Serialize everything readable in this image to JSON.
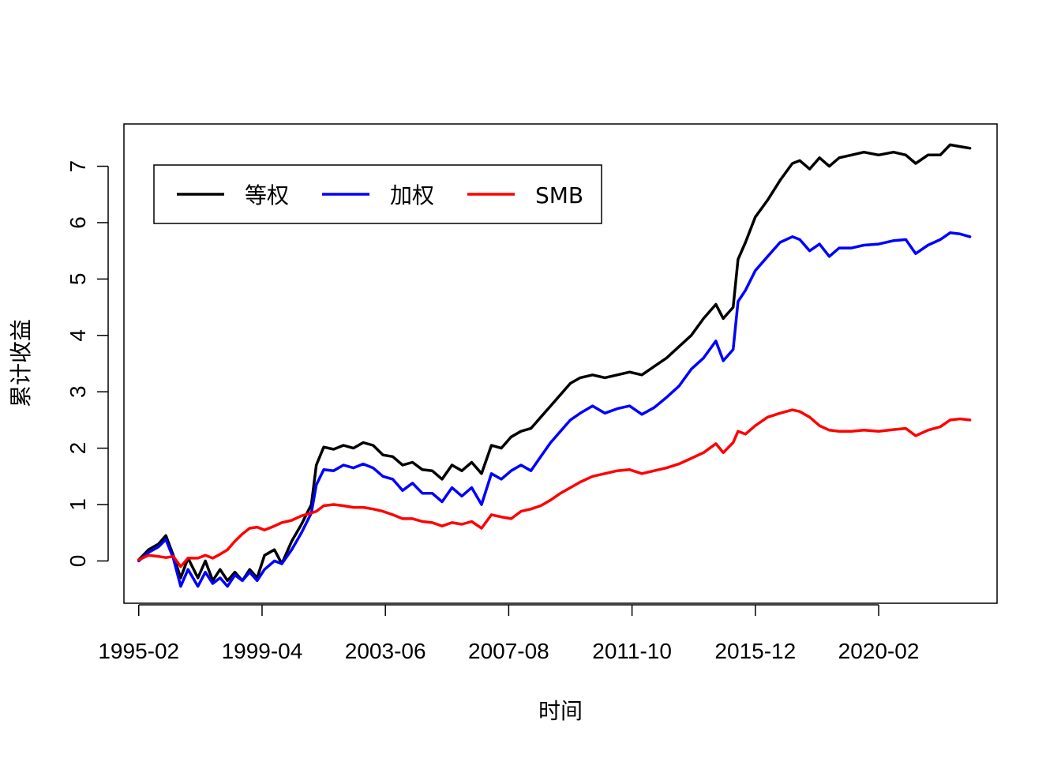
{
  "chart_data": {
    "type": "line",
    "title": "",
    "xlabel": "时间",
    "ylabel": "累计收益",
    "x_tick_labels": [
      "1995-02",
      "1999-04",
      "2003-06",
      "2007-08",
      "2011-10",
      "2015-12",
      "2020-02"
    ],
    "x_tick_dates": [
      "1995-02",
      "1999-04",
      "2003-06",
      "2007-08",
      "2011-10",
      "2015-12",
      "2020-02"
    ],
    "y_ticks": [
      0,
      1,
      2,
      3,
      4,
      5,
      6,
      7
    ],
    "ylim": [
      -0.75,
      7.75
    ],
    "xlim": [
      "1994-08",
      "2024-02"
    ],
    "grid": false,
    "legend_position": "top-left",
    "series": [
      {
        "name": "等权",
        "color": "#000000",
        "points": [
          [
            "1995-02",
            0.02
          ],
          [
            "1995-06",
            0.2
          ],
          [
            "1995-10",
            0.3
          ],
          [
            "1996-01",
            0.45
          ],
          [
            "1996-04",
            0.1
          ],
          [
            "1996-07",
            -0.3
          ],
          [
            "1996-10",
            0.05
          ],
          [
            "1997-02",
            -0.3
          ],
          [
            "1997-05",
            0.0
          ],
          [
            "1997-08",
            -0.35
          ],
          [
            "1997-11",
            -0.15
          ],
          [
            "1998-02",
            -0.35
          ],
          [
            "1998-05",
            -0.2
          ],
          [
            "1998-08",
            -0.35
          ],
          [
            "1998-11",
            -0.15
          ],
          [
            "1999-02",
            -0.3
          ],
          [
            "1999-05",
            0.1
          ],
          [
            "1999-09",
            0.2
          ],
          [
            "1999-12",
            -0.05
          ],
          [
            "2000-04",
            0.35
          ],
          [
            "2000-08",
            0.65
          ],
          [
            "2000-12",
            1.0
          ],
          [
            "2001-02",
            1.7
          ],
          [
            "2001-05",
            2.02
          ],
          [
            "2001-09",
            1.98
          ],
          [
            "2002-01",
            2.05
          ],
          [
            "2002-05",
            2.0
          ],
          [
            "2002-09",
            2.1
          ],
          [
            "2003-01",
            2.05
          ],
          [
            "2003-05",
            1.88
          ],
          [
            "2003-09",
            1.85
          ],
          [
            "2004-01",
            1.7
          ],
          [
            "2004-05",
            1.75
          ],
          [
            "2004-09",
            1.62
          ],
          [
            "2005-01",
            1.6
          ],
          [
            "2005-05",
            1.45
          ],
          [
            "2005-09",
            1.7
          ],
          [
            "2006-01",
            1.6
          ],
          [
            "2006-05",
            1.75
          ],
          [
            "2006-09",
            1.55
          ],
          [
            "2007-01",
            2.05
          ],
          [
            "2007-05",
            2.0
          ],
          [
            "2007-09",
            2.2
          ],
          [
            "2008-01",
            2.3
          ],
          [
            "2008-05",
            2.35
          ],
          [
            "2008-09",
            2.55
          ],
          [
            "2009-01",
            2.75
          ],
          [
            "2009-05",
            2.95
          ],
          [
            "2009-09",
            3.15
          ],
          [
            "2010-01",
            3.25
          ],
          [
            "2010-06",
            3.3
          ],
          [
            "2010-11",
            3.25
          ],
          [
            "2011-04",
            3.3
          ],
          [
            "2011-09",
            3.35
          ],
          [
            "2012-02",
            3.3
          ],
          [
            "2012-07",
            3.45
          ],
          [
            "2012-12",
            3.6
          ],
          [
            "2013-05",
            3.8
          ],
          [
            "2013-10",
            4.0
          ],
          [
            "2014-03",
            4.3
          ],
          [
            "2014-08",
            4.55
          ],
          [
            "2014-11",
            4.3
          ],
          [
            "2015-03",
            4.5
          ],
          [
            "2015-05",
            5.35
          ],
          [
            "2015-08",
            5.65
          ],
          [
            "2015-12",
            6.1
          ],
          [
            "2016-05",
            6.4
          ],
          [
            "2016-10",
            6.75
          ],
          [
            "2017-03",
            7.05
          ],
          [
            "2017-06",
            7.1
          ],
          [
            "2017-10",
            6.95
          ],
          [
            "2018-02",
            7.15
          ],
          [
            "2018-06",
            7.0
          ],
          [
            "2018-10",
            7.15
          ],
          [
            "2019-03",
            7.2
          ],
          [
            "2019-08",
            7.25
          ],
          [
            "2020-02",
            7.2
          ],
          [
            "2020-08",
            7.25
          ],
          [
            "2021-01",
            7.2
          ],
          [
            "2021-05",
            7.05
          ],
          [
            "2021-10",
            7.2
          ],
          [
            "2022-03",
            7.2
          ],
          [
            "2022-07",
            7.38
          ],
          [
            "2022-11",
            7.35
          ],
          [
            "2023-03",
            7.32
          ]
        ]
      },
      {
        "name": "加权",
        "color": "#0000FF",
        "points": [
          [
            "1995-02",
            0.0
          ],
          [
            "1995-06",
            0.15
          ],
          [
            "1995-10",
            0.25
          ],
          [
            "1996-01",
            0.38
          ],
          [
            "1996-04",
            0.05
          ],
          [
            "1996-07",
            -0.45
          ],
          [
            "1996-10",
            -0.15
          ],
          [
            "1997-02",
            -0.45
          ],
          [
            "1997-05",
            -0.2
          ],
          [
            "1997-08",
            -0.4
          ],
          [
            "1997-11",
            -0.3
          ],
          [
            "1998-02",
            -0.45
          ],
          [
            "1998-05",
            -0.25
          ],
          [
            "1998-08",
            -0.35
          ],
          [
            "1998-11",
            -0.2
          ],
          [
            "1999-02",
            -0.35
          ],
          [
            "1999-05",
            -0.15
          ],
          [
            "1999-09",
            0.0
          ],
          [
            "1999-12",
            -0.05
          ],
          [
            "2000-04",
            0.2
          ],
          [
            "2000-08",
            0.5
          ],
          [
            "2000-12",
            0.85
          ],
          [
            "2001-02",
            1.35
          ],
          [
            "2001-05",
            1.62
          ],
          [
            "2001-09",
            1.6
          ],
          [
            "2002-01",
            1.7
          ],
          [
            "2002-05",
            1.65
          ],
          [
            "2002-09",
            1.72
          ],
          [
            "2003-01",
            1.65
          ],
          [
            "2003-05",
            1.5
          ],
          [
            "2003-09",
            1.45
          ],
          [
            "2004-01",
            1.25
          ],
          [
            "2004-05",
            1.38
          ],
          [
            "2004-09",
            1.2
          ],
          [
            "2005-01",
            1.2
          ],
          [
            "2005-05",
            1.05
          ],
          [
            "2005-09",
            1.3
          ],
          [
            "2006-01",
            1.15
          ],
          [
            "2006-05",
            1.3
          ],
          [
            "2006-09",
            1.0
          ],
          [
            "2007-01",
            1.55
          ],
          [
            "2007-05",
            1.45
          ],
          [
            "2007-09",
            1.6
          ],
          [
            "2008-01",
            1.7
          ],
          [
            "2008-05",
            1.6
          ],
          [
            "2008-09",
            1.85
          ],
          [
            "2009-01",
            2.1
          ],
          [
            "2009-05",
            2.3
          ],
          [
            "2009-09",
            2.5
          ],
          [
            "2010-01",
            2.62
          ],
          [
            "2010-06",
            2.75
          ],
          [
            "2010-11",
            2.62
          ],
          [
            "2011-04",
            2.7
          ],
          [
            "2011-09",
            2.75
          ],
          [
            "2012-02",
            2.6
          ],
          [
            "2012-07",
            2.72
          ],
          [
            "2012-12",
            2.9
          ],
          [
            "2013-05",
            3.1
          ],
          [
            "2013-10",
            3.4
          ],
          [
            "2014-03",
            3.6
          ],
          [
            "2014-08",
            3.9
          ],
          [
            "2014-11",
            3.55
          ],
          [
            "2015-03",
            3.75
          ],
          [
            "2015-05",
            4.6
          ],
          [
            "2015-08",
            4.8
          ],
          [
            "2015-12",
            5.15
          ],
          [
            "2016-05",
            5.4
          ],
          [
            "2016-10",
            5.65
          ],
          [
            "2017-03",
            5.75
          ],
          [
            "2017-06",
            5.7
          ],
          [
            "2017-10",
            5.5
          ],
          [
            "2018-02",
            5.62
          ],
          [
            "2018-06",
            5.4
          ],
          [
            "2018-10",
            5.55
          ],
          [
            "2019-03",
            5.55
          ],
          [
            "2019-08",
            5.6
          ],
          [
            "2020-02",
            5.62
          ],
          [
            "2020-08",
            5.68
          ],
          [
            "2021-01",
            5.7
          ],
          [
            "2021-05",
            5.45
          ],
          [
            "2021-10",
            5.6
          ],
          [
            "2022-03",
            5.7
          ],
          [
            "2022-07",
            5.82
          ],
          [
            "2022-11",
            5.8
          ],
          [
            "2023-03",
            5.75
          ]
        ]
      },
      {
        "name": "SMB",
        "color": "#FF0000",
        "points": [
          [
            "1995-02",
            0.02
          ],
          [
            "1995-06",
            0.1
          ],
          [
            "1995-10",
            0.08
          ],
          [
            "1996-01",
            0.06
          ],
          [
            "1996-04",
            0.08
          ],
          [
            "1996-07",
            -0.1
          ],
          [
            "1996-10",
            0.05
          ],
          [
            "1997-02",
            0.05
          ],
          [
            "1997-05",
            0.1
          ],
          [
            "1997-08",
            0.05
          ],
          [
            "1997-11",
            0.12
          ],
          [
            "1998-02",
            0.2
          ],
          [
            "1998-05",
            0.35
          ],
          [
            "1998-08",
            0.48
          ],
          [
            "1998-11",
            0.58
          ],
          [
            "1999-02",
            0.6
          ],
          [
            "1999-05",
            0.55
          ],
          [
            "1999-09",
            0.62
          ],
          [
            "1999-12",
            0.68
          ],
          [
            "2000-04",
            0.72
          ],
          [
            "2000-08",
            0.8
          ],
          [
            "2000-12",
            0.85
          ],
          [
            "2001-02",
            0.88
          ],
          [
            "2001-05",
            0.98
          ],
          [
            "2001-09",
            1.0
          ],
          [
            "2002-01",
            0.98
          ],
          [
            "2002-05",
            0.95
          ],
          [
            "2002-09",
            0.95
          ],
          [
            "2003-01",
            0.92
          ],
          [
            "2003-05",
            0.88
          ],
          [
            "2003-09",
            0.82
          ],
          [
            "2004-01",
            0.75
          ],
          [
            "2004-05",
            0.75
          ],
          [
            "2004-09",
            0.7
          ],
          [
            "2005-01",
            0.68
          ],
          [
            "2005-05",
            0.62
          ],
          [
            "2005-09",
            0.68
          ],
          [
            "2006-01",
            0.65
          ],
          [
            "2006-05",
            0.7
          ],
          [
            "2006-09",
            0.58
          ],
          [
            "2007-01",
            0.82
          ],
          [
            "2007-05",
            0.78
          ],
          [
            "2007-09",
            0.75
          ],
          [
            "2008-01",
            0.88
          ],
          [
            "2008-05",
            0.92
          ],
          [
            "2008-09",
            0.98
          ],
          [
            "2009-01",
            1.08
          ],
          [
            "2009-05",
            1.2
          ],
          [
            "2009-09",
            1.3
          ],
          [
            "2010-01",
            1.4
          ],
          [
            "2010-06",
            1.5
          ],
          [
            "2010-11",
            1.55
          ],
          [
            "2011-04",
            1.6
          ],
          [
            "2011-09",
            1.62
          ],
          [
            "2012-02",
            1.55
          ],
          [
            "2012-07",
            1.6
          ],
          [
            "2012-12",
            1.65
          ],
          [
            "2013-05",
            1.72
          ],
          [
            "2013-10",
            1.82
          ],
          [
            "2014-03",
            1.92
          ],
          [
            "2014-08",
            2.08
          ],
          [
            "2014-11",
            1.92
          ],
          [
            "2015-03",
            2.1
          ],
          [
            "2015-05",
            2.3
          ],
          [
            "2015-08",
            2.25
          ],
          [
            "2015-12",
            2.4
          ],
          [
            "2016-05",
            2.55
          ],
          [
            "2016-10",
            2.62
          ],
          [
            "2017-03",
            2.68
          ],
          [
            "2017-06",
            2.65
          ],
          [
            "2017-10",
            2.55
          ],
          [
            "2018-02",
            2.4
          ],
          [
            "2018-06",
            2.32
          ],
          [
            "2018-10",
            2.3
          ],
          [
            "2019-03",
            2.3
          ],
          [
            "2019-08",
            2.32
          ],
          [
            "2020-02",
            2.3
          ],
          [
            "2020-08",
            2.33
          ],
          [
            "2021-01",
            2.35
          ],
          [
            "2021-05",
            2.22
          ],
          [
            "2021-10",
            2.32
          ],
          [
            "2022-03",
            2.38
          ],
          [
            "2022-07",
            2.5
          ],
          [
            "2022-11",
            2.52
          ],
          [
            "2023-03",
            2.5
          ]
        ]
      }
    ]
  }
}
